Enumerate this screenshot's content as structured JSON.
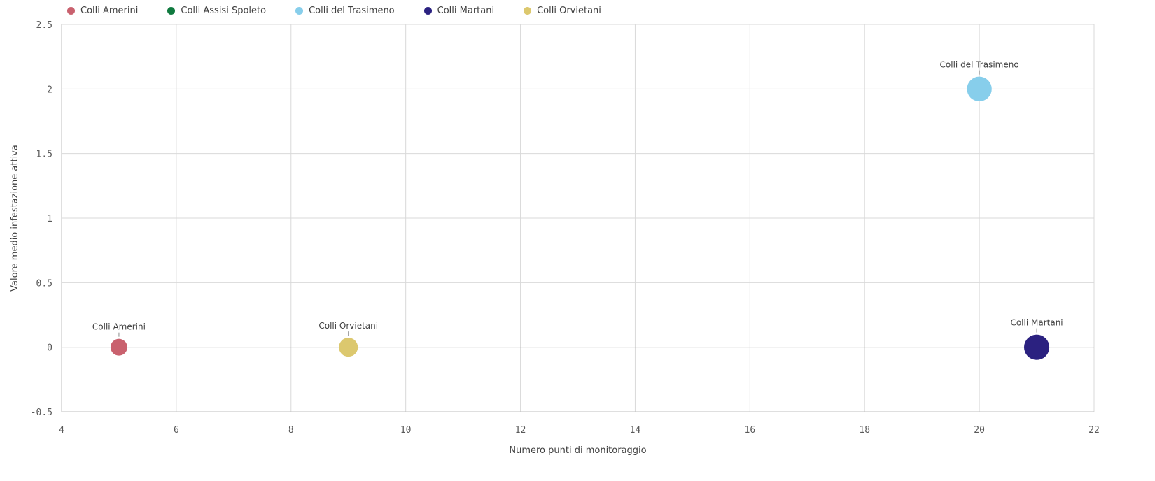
{
  "chart_data": {
    "type": "scatter",
    "xlabel": "Numero punti di monitoraggio",
    "ylabel": "Valore medio infestazione attiva",
    "xlim": [
      4,
      22
    ],
    "ylim": [
      -0.5,
      2.5
    ],
    "xticks": [
      4,
      6,
      8,
      10,
      12,
      14,
      16,
      18,
      20,
      22
    ],
    "yticks": [
      -0.5,
      0,
      0.5,
      1,
      1.5,
      2,
      2.5
    ],
    "xtick_labels": [
      "4",
      "6",
      "8",
      "10",
      "12",
      "14",
      "16",
      "18",
      "20",
      "22"
    ],
    "ytick_labels": [
      "-0.5",
      "0",
      "0.5",
      "1",
      "1.5",
      "2",
      "2.5"
    ],
    "grid": true,
    "legend_position": "top-left",
    "legend": [
      {
        "name": "Colli Amerini",
        "color": "#c9616e"
      },
      {
        "name": "Colli Assisi Spoleto",
        "color": "#107a3f"
      },
      {
        "name": "Colli del Trasimeno",
        "color": "#87ceeb"
      },
      {
        "name": "Colli Martani",
        "color": "#2b2180"
      },
      {
        "name": "Colli Orvietani",
        "color": "#dcc86e"
      }
    ],
    "points": [
      {
        "name": "Colli Amerini",
        "x": 5,
        "y": 0,
        "color": "#c9616e",
        "label": "Colli Amerini"
      },
      {
        "name": "Colli Orvietani",
        "x": 9,
        "y": 0,
        "color": "#dcc86e",
        "label": "Colli Orvietani"
      },
      {
        "name": "Colli del Trasimeno",
        "x": 20,
        "y": 2,
        "color": "#87ceeb",
        "label": "Colli del Trasimeno"
      },
      {
        "name": "Colli Martani",
        "x": 21,
        "y": 0,
        "color": "#2b2180",
        "label": "Colli Martani"
      }
    ]
  }
}
